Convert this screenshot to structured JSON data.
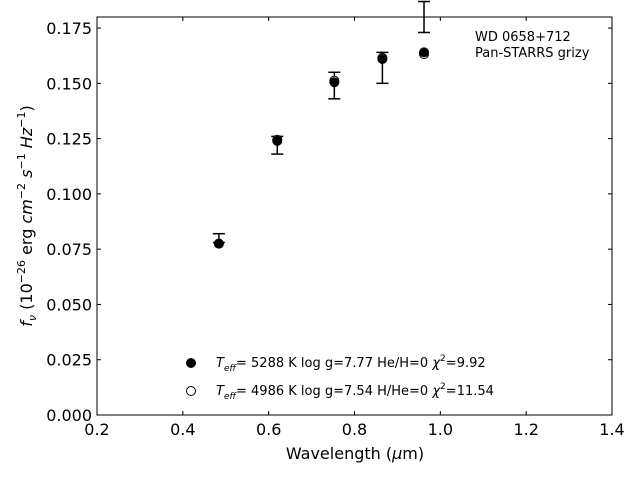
{
  "chart_data": {
    "type": "scatter",
    "xlabel": "Wavelength (μm)",
    "ylabel": "f_ν (10^-26 erg cm^-2 s^-1 Hz^-1)",
    "xlim": [
      0.2,
      1.4
    ],
    "ylim": [
      0.0,
      0.18
    ],
    "xticks": [
      "0.2",
      "0.4",
      "0.6",
      "0.8",
      "1.0",
      "1.2",
      "1.4"
    ],
    "yticks": [
      "0.000",
      "0.025",
      "0.050",
      "0.075",
      "0.100",
      "0.125",
      "0.150",
      "0.175"
    ],
    "annotation": [
      "WD 0658+712",
      "Pan-STARRS grizy"
    ],
    "observed": {
      "x": [
        0.484,
        0.62,
        0.753,
        0.865,
        0.962
      ],
      "y": [
        0.08,
        0.122,
        0.149,
        0.157,
        0.18
      ],
      "yerr": [
        0.002,
        0.004,
        0.006,
        0.007,
        0.007
      ]
    },
    "series": [
      {
        "name": "Teff= 5288 K log g=7.77 He/H=0 χ2=9.92",
        "marker": "filled",
        "x": [
          0.484,
          0.62,
          0.753,
          0.865,
          0.962
        ],
        "y": [
          0.0775,
          0.124,
          0.1505,
          0.161,
          0.164
        ]
      },
      {
        "name": "Teff= 4986 K log g=7.54 H/He=0 χ2=11.54",
        "marker": "open",
        "x": [
          0.484,
          0.62,
          0.753,
          0.865,
          0.962
        ],
        "y": [
          0.0775,
          0.1245,
          0.1512,
          0.1615,
          0.1632
        ]
      }
    ],
    "legend": [
      {
        "Teff": "5288",
        "logg": "7.77",
        "comp": "He/H=0",
        "chi2": "9.92"
      },
      {
        "Teff": "4986",
        "logg": "7.54",
        "comp": "H/He=0",
        "chi2": "11.54"
      }
    ],
    "legend_placement": "lower-center",
    "grid": false
  }
}
